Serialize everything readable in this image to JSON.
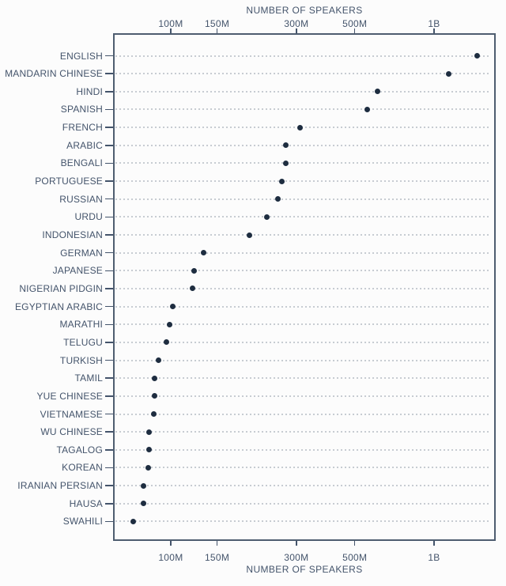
{
  "chart_data": {
    "type": "scatter",
    "subtype": "dot-plot",
    "orientation": "horizontal",
    "xlabel_top": "NUMBER OF SPEAKERS",
    "xlabel_bottom": "NUMBER OF SPEAKERS",
    "x_scale": "log",
    "x_domain_millions": [
      60.4,
      1715
    ],
    "grid": "dotted-horizontal",
    "legend": "none",
    "x_ticks": [
      {
        "value": 100,
        "label": "100M"
      },
      {
        "value": 150,
        "label": "150M"
      },
      {
        "value": 300,
        "label": "300M"
      },
      {
        "value": 500,
        "label": "500M"
      },
      {
        "value": 1000,
        "label": "1B"
      }
    ],
    "categories": [
      "ENGLISH",
      "MANDARIN CHINESE",
      "HINDI",
      "SPANISH",
      "FRENCH",
      "ARABIC",
      "BENGALI",
      "PORTUGUESE",
      "RUSSIAN",
      "URDU",
      "INDONESIAN",
      "GERMAN",
      "JAPANESE",
      "NIGERIAN PIDGIN",
      "EGYPTIAN ARABIC",
      "MARATHI",
      "TELUGU",
      "TURKISH",
      "TAMIL",
      "YUE CHINESE",
      "VIETNAMESE",
      "WU CHINESE",
      "TAGALOG",
      "KOREAN",
      "IRANIAN PERSIAN",
      "HAUSA",
      "SWAHILI"
    ],
    "values_millions": [
      1456,
      1138,
      609,
      559,
      310,
      274,
      273,
      264,
      255,
      232,
      199,
      133,
      123,
      121,
      102,
      99,
      96,
      90,
      87,
      87,
      86,
      83,
      83,
      82,
      79,
      79,
      72
    ],
    "colors": {
      "background": "#fcfcfc",
      "dot": "#1e2d40",
      "frame": "#4e5d70",
      "grid": "#c7ccd2",
      "text": "#44546b",
      "tick": "#44546b"
    }
  }
}
